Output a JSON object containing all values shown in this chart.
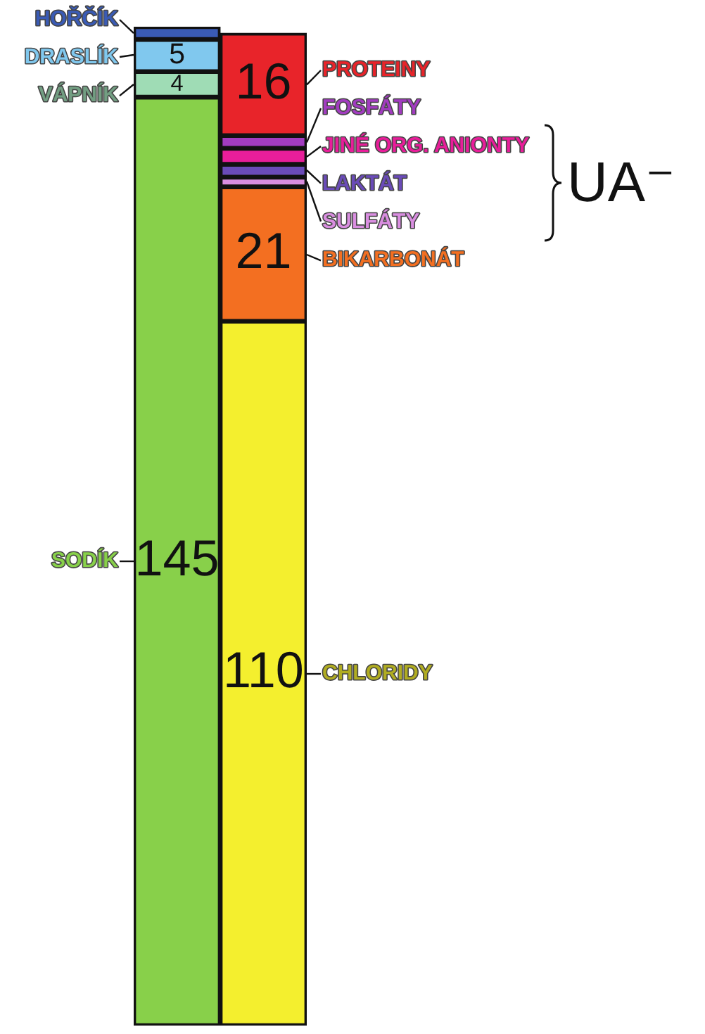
{
  "chart_data": {
    "type": "bar",
    "stacked": true,
    "categories": [
      null,
      null
    ],
    "legend": false,
    "tick_labels": false,
    "series": [
      {
        "name": "SODÍK",
        "color": "#88d04a",
        "values": [
          145,
          null
        ],
        "value_labels": [
          "145",
          null
        ]
      },
      {
        "name": "VÁPNÍK",
        "color": "#9fdcb5",
        "values": [
          4,
          null
        ],
        "value_labels": [
          "4",
          null
        ]
      },
      {
        "name": "DRASLÍK",
        "color": "#80c8ee",
        "values": [
          5,
          null
        ],
        "value_labels": [
          "5",
          null
        ]
      },
      {
        "name": "HOŘČÍK",
        "color": "#3a5bb5",
        "values": [
          2,
          null
        ]
      },
      {
        "name": "CHLORIDY",
        "color": "#f4ef2e",
        "values": [
          null,
          110
        ],
        "value_labels": [
          null,
          "110"
        ]
      },
      {
        "name": "BIKARBONÁT",
        "color": "#f36f21",
        "values": [
          null,
          21
        ],
        "value_labels": [
          null,
          "21"
        ]
      },
      {
        "name": "SULFÁTY",
        "color": "#d98ee0",
        "values": [
          null,
          1.5
        ]
      },
      {
        "name": "LAKTÁT",
        "color": "#6a4bb8",
        "values": [
          null,
          2
        ]
      },
      {
        "name": "JINÉ ORG. ANIONTY",
        "color": "#e81e9a",
        "values": [
          null,
          2.5
        ]
      },
      {
        "name": "FOSFÁTY",
        "color": "#a23cc0",
        "values": [
          null,
          2
        ]
      },
      {
        "name": "PROTEINY",
        "color": "#e8242a",
        "values": [
          null,
          16
        ],
        "value_labels": [
          null,
          "16"
        ]
      }
    ],
    "annotations": [
      "UA⁻"
    ]
  }
}
